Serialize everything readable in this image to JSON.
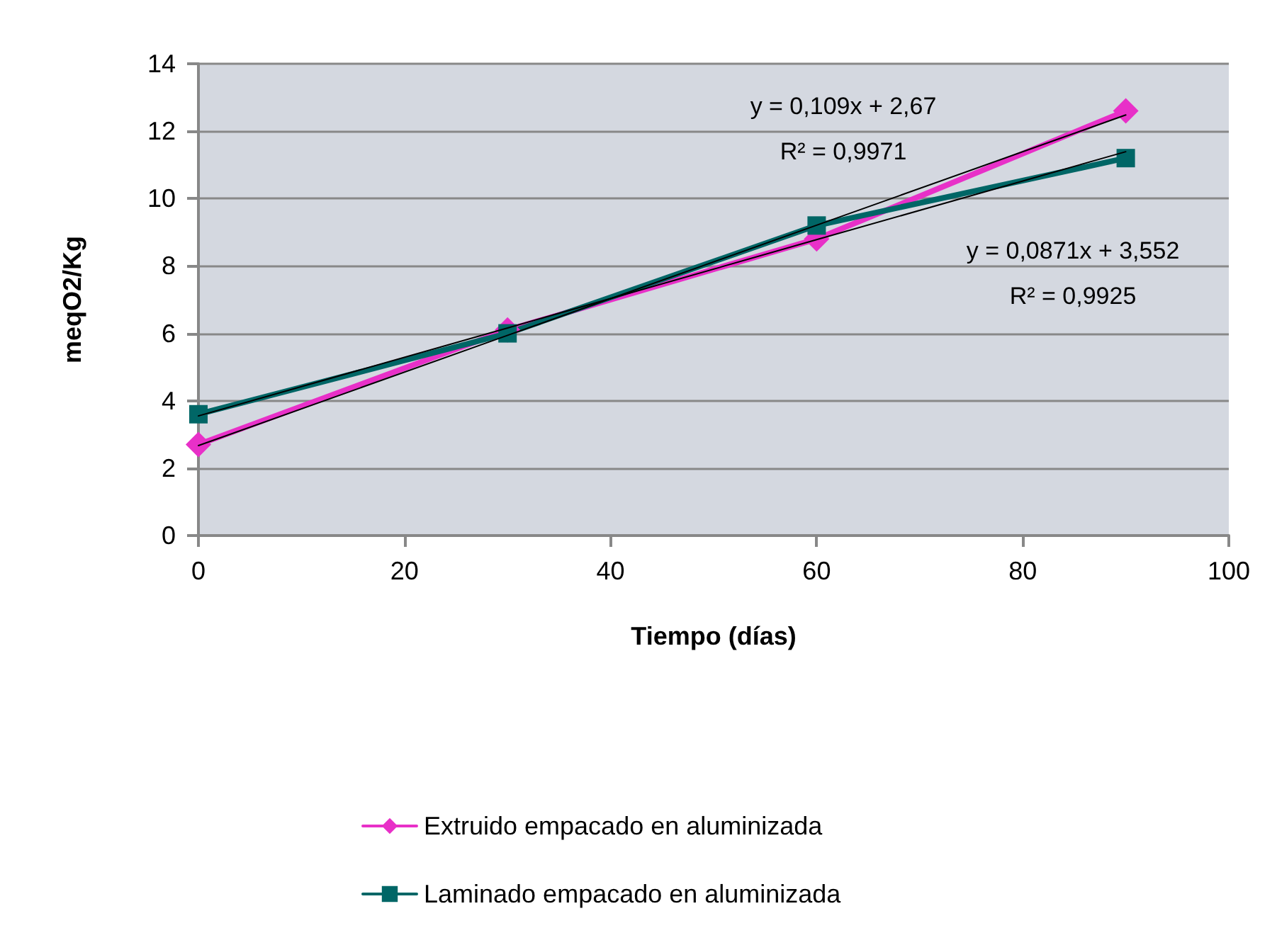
{
  "chart_data": {
    "type": "line",
    "xlabel": "Tiempo (días)",
    "ylabel": "meqO2/Kg",
    "x": [
      0,
      30,
      60,
      90
    ],
    "xlim": [
      0,
      100
    ],
    "xticks": [
      0,
      20,
      40,
      60,
      80,
      100
    ],
    "ylim": [
      0,
      14
    ],
    "yticks": [
      0,
      2,
      4,
      6,
      8,
      10,
      12,
      14
    ],
    "grid": "y",
    "legend": "bottom",
    "series": [
      {
        "name": "Extruido empacado en aluminizada",
        "color": "#e830c8",
        "marker": "diamond",
        "values": [
          2.7,
          6.1,
          8.8,
          12.6
        ]
      },
      {
        "name": "Laminado empacado en aluminizada",
        "color": "#006666",
        "marker": "square",
        "values": [
          3.6,
          6.0,
          9.2,
          11.2
        ]
      },
      {
        "color": "#000000",
        "marker": "none",
        "values": [
          2.67,
          5.94,
          9.21,
          12.48
        ]
      },
      {
        "color": "#000000",
        "marker": "none",
        "values": [
          3.55,
          6.16,
          8.78,
          11.39
        ]
      }
    ],
    "annotations": [
      "y = 0,109x + 2,67",
      "R² = 0,9971",
      "y = 0,0871x + 3,552",
      "R² = 0,9925"
    ]
  }
}
